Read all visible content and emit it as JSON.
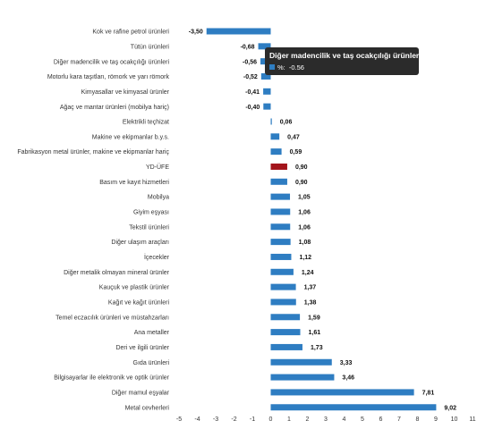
{
  "chart_data": {
    "type": "bar",
    "orientation": "horizontal",
    "categories": [
      "Kok ve rafine petrol ürünleri",
      "Tütün ürünleri",
      "Diğer madencilik ve taş ocakçılığı ürünleri",
      "Motorlu kara taşıtları, römork ve yarı römork",
      "Kimyasallar ve kimyasal ürünler",
      "Ağaç ve mantar ürünleri (mobilya hariç)",
      "Elektrikli teçhizat",
      "Makine ve ekipmanlar b.y.s.",
      "Fabrikasyon metal ürünler, makine ve ekipmanlar hariç",
      "YD-ÜFE",
      "Basım ve kayıt hizmetleri",
      "Mobilya",
      "Giyim eşyası",
      "Tekstil ürünleri",
      "Diğer ulaşım araçları",
      "İçecekler",
      "Diğer metalik olmayan mineral ürünler",
      "Kauçuk ve plastik ürünler",
      "Kağıt ve kağıt ürünleri",
      "Temel eczacılık ürünleri ve müstahzarları",
      "Ana metaller",
      "Deri ve ilgili ürünler",
      "Gıda ürünleri",
      "Bilgisayarlar ile elektronik ve optik ürünler",
      "Diğer mamul eşyalar",
      "Metal cevherleri"
    ],
    "values": [
      -3.5,
      -0.68,
      -0.56,
      -0.52,
      -0.41,
      -0.4,
      0.06,
      0.47,
      0.59,
      0.9,
      0.9,
      1.05,
      1.06,
      1.06,
      1.08,
      1.12,
      1.24,
      1.37,
      1.38,
      1.59,
      1.61,
      1.73,
      3.33,
      3.46,
      7.81,
      9.02
    ],
    "value_labels": [
      "-3,50",
      "-0,68",
      "-0,56",
      "-0,52",
      "-0,41",
      "-0,40",
      "0,06",
      "0,47",
      "0,59",
      "0,90",
      "0,90",
      "1,05",
      "1,06",
      "1,06",
      "1,08",
      "1,12",
      "1,24",
      "1,37",
      "1,38",
      "1,59",
      "1,61",
      "1,73",
      "3,33",
      "3,46",
      "7,81",
      "9,02"
    ],
    "highlight_category": "YD-ÜFE",
    "xlim": [
      -5,
      11
    ],
    "xticks": [
      -5,
      -4,
      -3,
      -2,
      -1,
      0,
      1,
      2,
      3,
      4,
      5,
      6,
      7,
      8,
      9,
      10,
      11
    ],
    "title": "",
    "xlabel": "",
    "ylabel": "",
    "grid": false,
    "colors": {
      "bar": "#2e7dc2",
      "highlight": "#a3141b",
      "label": "#333333",
      "value_label": "#111111",
      "tooltip_bg": "#2b2b2b",
      "tooltip_text": "#ffffff"
    },
    "tooltip": {
      "category_index": 2,
      "title": "Diğer madencilik ve taş ocakçılığı ürünleri",
      "series_label": "%:",
      "value_text": "-0.56"
    }
  }
}
